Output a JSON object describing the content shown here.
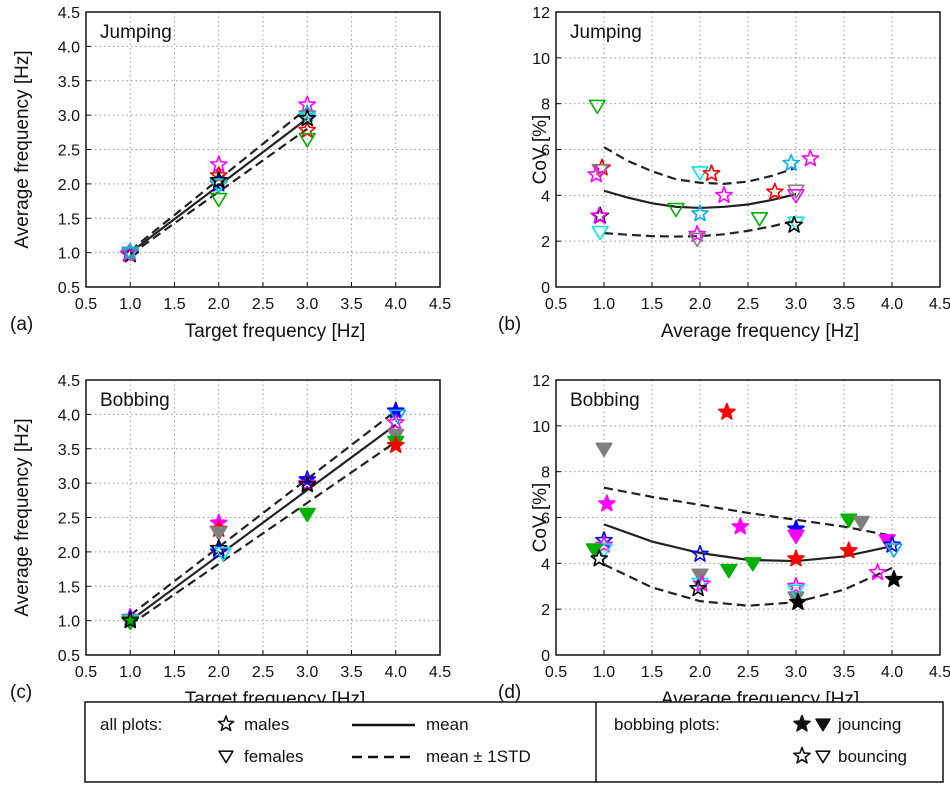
{
  "chart_data": [
    {
      "panel": "(a)",
      "type": "scatter",
      "title": "Jumping",
      "xlabel": "Target frequency [Hz]",
      "ylabel": "Average frequency [Hz]",
      "xlim": [
        0.5,
        4.5
      ],
      "ylim": [
        0.5,
        4.5
      ],
      "xticks": [
        "0.5",
        "1.0",
        "1.5",
        "2.0",
        "2.5",
        "3.0",
        "3.5",
        "4.0",
        "4.5"
      ],
      "yticks": [
        "0.5",
        "1.0",
        "1.5",
        "2.0",
        "2.5",
        "3.0",
        "3.5",
        "4.0",
        "4.5"
      ],
      "grid": true,
      "lines": [
        {
          "style": "solid",
          "x": [
            1,
            3
          ],
          "y": [
            1.0,
            2.95
          ]
        },
        {
          "style": "dashed",
          "x": [
            1,
            3
          ],
          "y": [
            1.03,
            3.1
          ]
        },
        {
          "style": "dashed",
          "x": [
            1,
            3
          ],
          "y": [
            0.97,
            2.8
          ]
        }
      ],
      "points": [
        {
          "x": 1.0,
          "y": 0.97,
          "m": "star",
          "c": "#000000",
          "f": false
        },
        {
          "x": 0.98,
          "y": 0.98,
          "m": "star",
          "c": "#ff00ff",
          "f": false
        },
        {
          "x": 1.0,
          "y": 1.0,
          "m": "star",
          "c": "#ff0000",
          "f": false
        },
        {
          "x": 1.0,
          "y": 1.0,
          "m": "tri",
          "c": "#00e5e5",
          "f": false
        },
        {
          "x": 1.0,
          "y": 0.99,
          "m": "tri",
          "c": "#808080",
          "f": false
        },
        {
          "x": 1.0,
          "y": 1.01,
          "m": "star",
          "c": "#00b0f0",
          "f": false
        },
        {
          "x": 2.0,
          "y": 2.28,
          "m": "star",
          "c": "#ff00ff",
          "f": false
        },
        {
          "x": 2.0,
          "y": 2.12,
          "m": "star",
          "c": "#ff0000",
          "f": false
        },
        {
          "x": 2.0,
          "y": 2.0,
          "m": "star",
          "c": "#0000ff",
          "f": false
        },
        {
          "x": 2.0,
          "y": 1.97,
          "m": "tri",
          "c": "#808080",
          "f": false
        },
        {
          "x": 2.0,
          "y": 1.99,
          "m": "tri",
          "c": "#00e5e5",
          "f": false
        },
        {
          "x": 2.0,
          "y": 1.78,
          "m": "tri",
          "c": "#00b000",
          "f": false
        },
        {
          "x": 2.0,
          "y": 2.05,
          "m": "star",
          "c": "#000000",
          "f": false
        },
        {
          "x": 3.0,
          "y": 3.15,
          "m": "star",
          "c": "#ff00ff",
          "f": false
        },
        {
          "x": 3.0,
          "y": 3.02,
          "m": "star",
          "c": "#00b0f0",
          "f": false
        },
        {
          "x": 3.0,
          "y": 2.98,
          "m": "tri",
          "c": "#808080",
          "f": false
        },
        {
          "x": 3.0,
          "y": 2.95,
          "m": "tri",
          "c": "#00e5e5",
          "f": false
        },
        {
          "x": 3.0,
          "y": 2.78,
          "m": "star",
          "c": "#ff0000",
          "f": false
        },
        {
          "x": 3.0,
          "y": 2.65,
          "m": "tri",
          "c": "#00b000",
          "f": false
        },
        {
          "x": 3.0,
          "y": 2.95,
          "m": "star",
          "c": "#000000",
          "f": false
        }
      ]
    },
    {
      "panel": "(b)",
      "type": "scatter",
      "title": "Jumping",
      "xlabel": "Average frequency [Hz]",
      "ylabel": "CoV [%]",
      "xlim": [
        0.5,
        4.5
      ],
      "ylim": [
        0,
        12
      ],
      "xticks": [
        "0.5",
        "1.0",
        "1.5",
        "2.0",
        "2.5",
        "3.0",
        "3.5",
        "4.0",
        "4.5"
      ],
      "yticks": [
        "0",
        "2",
        "4",
        "6",
        "8",
        "10",
        "12"
      ],
      "grid": true,
      "lines": [
        {
          "style": "solid",
          "x": [
            1.0,
            1.25,
            1.5,
            1.75,
            2.0,
            2.25,
            2.5,
            2.75,
            3.0
          ],
          "y": [
            4.2,
            3.9,
            3.65,
            3.5,
            3.45,
            3.5,
            3.6,
            3.8,
            4.05
          ]
        },
        {
          "style": "dashed",
          "x": [
            1.0,
            1.25,
            1.5,
            1.75,
            2.0,
            2.25,
            2.5,
            2.75,
            3.0
          ],
          "y": [
            6.1,
            5.5,
            5.05,
            4.7,
            4.55,
            4.5,
            4.6,
            4.85,
            5.2
          ]
        },
        {
          "style": "dashed",
          "x": [
            1.0,
            1.25,
            1.5,
            1.75,
            2.0,
            2.25,
            2.5,
            2.75,
            3.0
          ],
          "y": [
            2.35,
            2.28,
            2.22,
            2.2,
            2.22,
            2.3,
            2.45,
            2.65,
            2.9
          ]
        }
      ],
      "points": [
        {
          "x": 0.93,
          "y": 7.9,
          "m": "tri",
          "c": "#00b000",
          "f": false
        },
        {
          "x": 0.98,
          "y": 5.2,
          "m": "star",
          "c": "#ff0000",
          "f": false
        },
        {
          "x": 0.96,
          "y": 5.1,
          "m": "tri",
          "c": "#808080",
          "f": false
        },
        {
          "x": 0.92,
          "y": 4.9,
          "m": "star",
          "c": "#ff00ff",
          "f": false
        },
        {
          "x": 0.96,
          "y": 3.1,
          "m": "star",
          "c": "#000000",
          "f": false
        },
        {
          "x": 0.95,
          "y": 3.1,
          "m": "star",
          "c": "#ff00ff",
          "f": false
        },
        {
          "x": 0.96,
          "y": 2.4,
          "m": "tri",
          "c": "#00e5e5",
          "f": false
        },
        {
          "x": 1.75,
          "y": 3.4,
          "m": "tri",
          "c": "#00b000",
          "f": false
        },
        {
          "x": 2.0,
          "y": 5.0,
          "m": "tri",
          "c": "#00e5e5",
          "f": false
        },
        {
          "x": 2.12,
          "y": 4.95,
          "m": "star",
          "c": "#ff0000",
          "f": false
        },
        {
          "x": 2.0,
          "y": 3.2,
          "m": "star",
          "c": "#00b0f0",
          "f": false
        },
        {
          "x": 2.25,
          "y": 4.0,
          "m": "star",
          "c": "#ff00ff",
          "f": false
        },
        {
          "x": 1.97,
          "y": 2.3,
          "m": "star",
          "c": "#ff00ff",
          "f": false
        },
        {
          "x": 1.97,
          "y": 2.1,
          "m": "tri",
          "c": "#808080",
          "f": false
        },
        {
          "x": 2.62,
          "y": 3.0,
          "m": "tri",
          "c": "#00b000",
          "f": false
        },
        {
          "x": 2.78,
          "y": 4.15,
          "m": "star",
          "c": "#ff0000",
          "f": false
        },
        {
          "x": 2.95,
          "y": 5.4,
          "m": "star",
          "c": "#00b0f0",
          "f": false
        },
        {
          "x": 3.0,
          "y": 4.2,
          "m": "tri",
          "c": "#808080",
          "f": false
        },
        {
          "x": 3.0,
          "y": 4.0,
          "m": "tri",
          "c": "#ff00ff",
          "f": false
        },
        {
          "x": 3.0,
          "y": 2.8,
          "m": "tri",
          "c": "#00e5e5",
          "f": false
        },
        {
          "x": 2.98,
          "y": 2.7,
          "m": "star",
          "c": "#000000",
          "f": false
        },
        {
          "x": 3.15,
          "y": 5.6,
          "m": "star",
          "c": "#ff00ff",
          "f": false
        }
      ]
    },
    {
      "panel": "(c)",
      "type": "scatter",
      "title": "Bobbing",
      "xlabel": "Target frequency [Hz]",
      "ylabel": "Average frequency [Hz]",
      "xlim": [
        0.5,
        4.5
      ],
      "ylim": [
        0.5,
        4.5
      ],
      "xticks": [
        "0.5",
        "1.0",
        "1.5",
        "2.0",
        "2.5",
        "3.0",
        "3.5",
        "4.0",
        "4.5"
      ],
      "yticks": [
        "0.5",
        "1.0",
        "1.5",
        "2.0",
        "2.5",
        "3.0",
        "3.5",
        "4.0",
        "4.5"
      ],
      "grid": true,
      "lines": [
        {
          "style": "solid",
          "x": [
            1,
            4
          ],
          "y": [
            1.0,
            3.85
          ]
        },
        {
          "style": "dashed",
          "x": [
            1,
            4
          ],
          "y": [
            1.08,
            4.05
          ]
        },
        {
          "style": "dashed",
          "x": [
            1,
            4
          ],
          "y": [
            0.94,
            3.6
          ]
        }
      ],
      "points": [
        {
          "x": 1.0,
          "y": 1.05,
          "m": "star",
          "c": "#ff00ff",
          "f": false
        },
        {
          "x": 1.0,
          "y": 1.02,
          "m": "star",
          "c": "#0000ff",
          "f": false
        },
        {
          "x": 1.0,
          "y": 1.0,
          "m": "tri",
          "c": "#00e5e5",
          "f": false
        },
        {
          "x": 1.0,
          "y": 0.98,
          "m": "tri",
          "c": "#00b000",
          "f": true
        },
        {
          "x": 1.0,
          "y": 1.0,
          "m": "star",
          "c": "#000000",
          "f": false
        },
        {
          "x": 2.0,
          "y": 2.42,
          "m": "star",
          "c": "#ff00ff",
          "f": true
        },
        {
          "x": 2.0,
          "y": 2.33,
          "m": "star",
          "c": "#ff0000",
          "f": true
        },
        {
          "x": 2.0,
          "y": 2.28,
          "m": "tri",
          "c": "#808080",
          "f": true
        },
        {
          "x": 2.0,
          "y": 2.05,
          "m": "star",
          "c": "#000000",
          "f": false
        },
        {
          "x": 2.0,
          "y": 2.0,
          "m": "star",
          "c": "#0000ff",
          "f": false
        },
        {
          "x": 2.05,
          "y": 1.98,
          "m": "tri",
          "c": "#00e5e5",
          "f": false
        },
        {
          "x": 3.0,
          "y": 3.05,
          "m": "star",
          "c": "#0000ff",
          "f": true
        },
        {
          "x": 3.0,
          "y": 3.0,
          "m": "star",
          "c": "#ff00ff",
          "f": false
        },
        {
          "x": 3.0,
          "y": 2.98,
          "m": "star",
          "c": "#000000",
          "f": false
        },
        {
          "x": 3.0,
          "y": 2.55,
          "m": "tri",
          "c": "#00b000",
          "f": true
        },
        {
          "x": 4.0,
          "y": 4.05,
          "m": "star",
          "c": "#0000ff",
          "f": true
        },
        {
          "x": 4.02,
          "y": 3.98,
          "m": "tri",
          "c": "#00b0f0",
          "f": false
        },
        {
          "x": 4.0,
          "y": 3.88,
          "m": "star",
          "c": "#ff00ff",
          "f": false
        },
        {
          "x": 4.0,
          "y": 3.7,
          "m": "tri",
          "c": "#808080",
          "f": true
        },
        {
          "x": 4.0,
          "y": 3.6,
          "m": "tri",
          "c": "#00b000",
          "f": true
        },
        {
          "x": 4.0,
          "y": 3.55,
          "m": "star",
          "c": "#ff0000",
          "f": true
        }
      ]
    },
    {
      "panel": "(d)",
      "type": "scatter",
      "title": "Bobbing",
      "xlabel": "Average frequency [Hz]",
      "ylabel": "CoV [%]",
      "xlim": [
        0.5,
        4.5
      ],
      "ylim": [
        0,
        12
      ],
      "xticks": [
        "0.5",
        "1.0",
        "1.5",
        "2.0",
        "2.5",
        "3.0",
        "3.5",
        "4.0",
        "4.5"
      ],
      "yticks": [
        "0",
        "2",
        "4",
        "6",
        "8",
        "10",
        "12"
      ],
      "grid": true,
      "lines": [
        {
          "style": "solid",
          "x": [
            1.0,
            1.5,
            2.0,
            2.5,
            3.0,
            3.5,
            4.0
          ],
          "y": [
            5.7,
            4.95,
            4.45,
            4.15,
            4.1,
            4.3,
            4.75
          ]
        },
        {
          "style": "dashed",
          "x": [
            1.0,
            1.5,
            2.0,
            2.5,
            3.0,
            3.5,
            4.0
          ],
          "y": [
            7.3,
            6.9,
            6.55,
            6.2,
            5.9,
            5.6,
            5.2
          ]
        },
        {
          "style": "dashed",
          "x": [
            1.0,
            1.5,
            2.0,
            2.5,
            3.0,
            3.5,
            4.0
          ],
          "y": [
            3.95,
            2.95,
            2.35,
            2.15,
            2.3,
            2.85,
            3.8
          ]
        }
      ],
      "points": [
        {
          "x": 1.0,
          "y": 9.0,
          "m": "tri",
          "c": "#808080",
          "f": true
        },
        {
          "x": 1.03,
          "y": 6.6,
          "m": "star",
          "c": "#ff00ff",
          "f": true
        },
        {
          "x": 1.0,
          "y": 5.0,
          "m": "star",
          "c": "#0000ff",
          "f": false
        },
        {
          "x": 1.0,
          "y": 4.8,
          "m": "star",
          "c": "#ff00ff",
          "f": false
        },
        {
          "x": 1.0,
          "y": 4.6,
          "m": "tri",
          "c": "#00e5e5",
          "f": false
        },
        {
          "x": 0.9,
          "y": 4.6,
          "m": "tri",
          "c": "#00b000",
          "f": true
        },
        {
          "x": 0.95,
          "y": 4.2,
          "m": "star",
          "c": "#000000",
          "f": false
        },
        {
          "x": 2.28,
          "y": 10.6,
          "m": "star",
          "c": "#ff0000",
          "f": true
        },
        {
          "x": 2.0,
          "y": 4.4,
          "m": "star",
          "c": "#0000ff",
          "f": false
        },
        {
          "x": 2.0,
          "y": 3.5,
          "m": "tri",
          "c": "#808080",
          "f": true
        },
        {
          "x": 2.0,
          "y": 3.1,
          "m": "tri",
          "c": "#00e5e5",
          "f": false
        },
        {
          "x": 2.02,
          "y": 3.1,
          "m": "star",
          "c": "#ff00ff",
          "f": false
        },
        {
          "x": 1.98,
          "y": 2.9,
          "m": "star",
          "c": "#000000",
          "f": false
        },
        {
          "x": 2.3,
          "y": 3.7,
          "m": "tri",
          "c": "#00b000",
          "f": true
        },
        {
          "x": 2.42,
          "y": 5.6,
          "m": "star",
          "c": "#ff00ff",
          "f": true
        },
        {
          "x": 2.55,
          "y": 4.0,
          "m": "tri",
          "c": "#00b000",
          "f": true
        },
        {
          "x": 3.0,
          "y": 5.5,
          "m": "star",
          "c": "#0000ff",
          "f": true
        },
        {
          "x": 3.0,
          "y": 5.2,
          "m": "tri",
          "c": "#ff00ff",
          "f": true
        },
        {
          "x": 3.0,
          "y": 4.2,
          "m": "star",
          "c": "#ff0000",
          "f": true
        },
        {
          "x": 3.0,
          "y": 3.0,
          "m": "star",
          "c": "#ff00ff",
          "f": false
        },
        {
          "x": 3.0,
          "y": 2.5,
          "m": "tri",
          "c": "#808080",
          "f": true
        },
        {
          "x": 3.0,
          "y": 2.8,
          "m": "tri",
          "c": "#00e5e5",
          "f": false
        },
        {
          "x": 3.02,
          "y": 2.3,
          "m": "star",
          "c": "#000000",
          "f": true
        },
        {
          "x": 3.55,
          "y": 5.9,
          "m": "tri",
          "c": "#00b000",
          "f": true
        },
        {
          "x": 3.55,
          "y": 4.55,
          "m": "star",
          "c": "#ff0000",
          "f": true
        },
        {
          "x": 3.68,
          "y": 5.8,
          "m": "tri",
          "c": "#808080",
          "f": true
        },
        {
          "x": 3.85,
          "y": 3.6,
          "m": "star",
          "c": "#ff00ff",
          "f": false
        },
        {
          "x": 3.95,
          "y": 5.0,
          "m": "tri",
          "c": "#ff00ff",
          "f": true
        },
        {
          "x": 4.0,
          "y": 4.8,
          "m": "star",
          "c": "#0000ff",
          "f": false
        },
        {
          "x": 4.02,
          "y": 4.6,
          "m": "tri",
          "c": "#00b0f0",
          "f": false
        },
        {
          "x": 4.02,
          "y": 3.3,
          "m": "star",
          "c": "#000000",
          "f": true
        }
      ]
    }
  ],
  "legend": {
    "all_plots_label": "all plots:",
    "males": "males",
    "females": "females",
    "mean": "mean",
    "mean_std": "mean ± 1STD",
    "bobbing_label": "bobbing plots:",
    "jouncing": "jouncing",
    "bouncing": "bouncing"
  }
}
